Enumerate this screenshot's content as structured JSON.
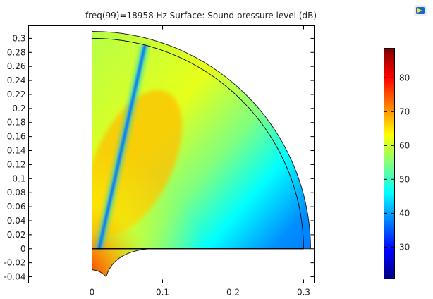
{
  "chart_data": {
    "type": "heatmap",
    "title": "freq(99)=18958 Hz   Surface: Sound pressure level (dB)",
    "xlabel": "",
    "ylabel": "",
    "xlim": [
      -0.09,
      0.315
    ],
    "ylim": [
      -0.049,
      0.318
    ],
    "x_ticks": [
      "0",
      "0.1",
      "0.2",
      "0.3"
    ],
    "y_ticks": [
      "-0.04",
      "-0.02",
      "0",
      "0.02",
      "0.04",
      "0.06",
      "0.08",
      "0.1",
      "0.12",
      "0.14",
      "0.16",
      "0.18",
      "0.2",
      "0.22",
      "0.24",
      "0.26",
      "0.28",
      "0.3"
    ],
    "domain": {
      "inner_radius": 0.3,
      "outer_radius": 0.31,
      "lower_region": [
        [
          0,
          0
        ],
        [
          0,
          -0.03
        ],
        [
          0.02,
          -0.04
        ],
        [
          0.08,
          0
        ]
      ]
    },
    "colorbar": {
      "colormap": "jet",
      "range": [
        20.6,
        88.7
      ],
      "ticks": [
        "30",
        "40",
        "50",
        "60",
        "70",
        "80"
      ],
      "colors": [
        "#00007f",
        "#0000ff",
        "#007fff",
        "#00ffff",
        "#7fff7f",
        "#ffff00",
        "#ff7f00",
        "#ff0000",
        "#7f0000"
      ]
    },
    "field_summary": {
      "max_near": [
        0.005,
        -0.035
      ],
      "null_ray_from": [
        0.01,
        0.0
      ],
      "null_ray_to": [
        0.075,
        0.29
      ],
      "low_region": "lower-right"
    }
  }
}
